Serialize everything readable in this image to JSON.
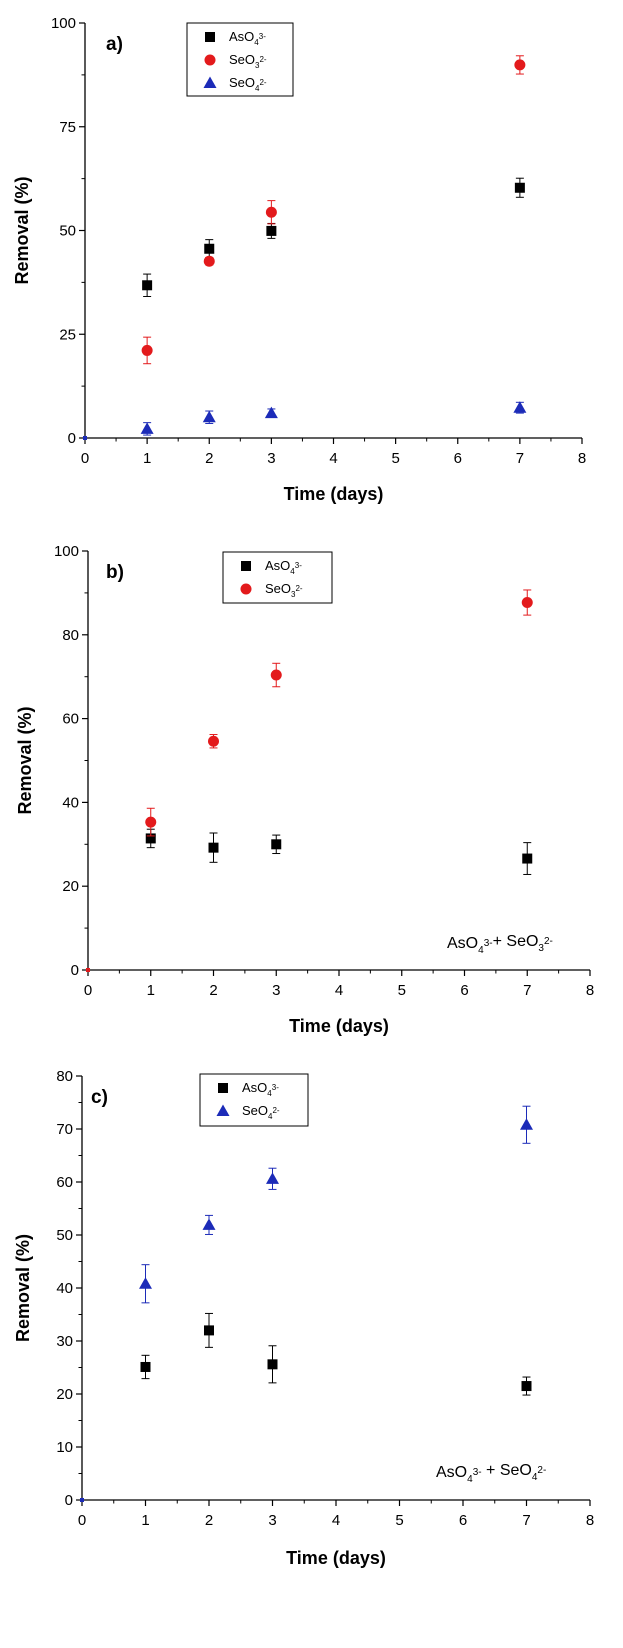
{
  "chart_data": [
    {
      "type": "scatter",
      "panel_label": "a)",
      "xlabel": "Time (days)",
      "ylabel": "Removal (%)",
      "xlim": [
        0,
        8
      ],
      "ylim": [
        0,
        100
      ],
      "xticks": [
        0,
        1,
        2,
        3,
        4,
        5,
        6,
        7,
        8
      ],
      "yticks": [
        0,
        25,
        50,
        75,
        100
      ],
      "legend_position": "top-center",
      "annotation": null,
      "series": [
        {
          "name": "AsO4 3-",
          "base": "AsO",
          "sub": "4",
          "sup": "3-",
          "color": "#000000",
          "marker": "square",
          "x": [
            0,
            1,
            2,
            3,
            7
          ],
          "y": [
            0,
            36.8,
            45.6,
            49.9,
            60.3
          ],
          "err": [
            0,
            2.7,
            2.2,
            1.8,
            2.3
          ]
        },
        {
          "name": "SeO3 2-",
          "base": "SeO",
          "sub": "3",
          "sup": "2-",
          "color": "#e31a1c",
          "marker": "circle",
          "x": [
            0,
            1,
            2,
            3,
            7
          ],
          "y": [
            0,
            21.1,
            42.6,
            54.4,
            89.9
          ],
          "err": [
            0,
            3.2,
            0.9,
            2.8,
            2.2
          ]
        },
        {
          "name": "SeO4 2-",
          "base": "SeO",
          "sub": "4",
          "sup": "2-",
          "color": "#1c2bb8",
          "marker": "triangle",
          "x": [
            0,
            1,
            2,
            3,
            7
          ],
          "y": [
            0,
            2.2,
            5.0,
            6.0,
            7.3
          ],
          "err": [
            0,
            1.5,
            1.5,
            1.0,
            1.3
          ]
        }
      ]
    },
    {
      "type": "scatter",
      "panel_label": "b)",
      "xlabel": "Time (days)",
      "ylabel": "Removal (%)",
      "xlim": [
        0,
        8
      ],
      "ylim": [
        0,
        100
      ],
      "xticks": [
        0,
        1,
        2,
        3,
        4,
        5,
        6,
        7,
        8
      ],
      "yticks": [
        0,
        20,
        40,
        60,
        80,
        100
      ],
      "legend_position": "top-center",
      "annotation": {
        "parts": [
          [
            "AsO",
            "4",
            "3-"
          ],
          [
            "SeO",
            "3",
            "2-"
          ]
        ],
        "joiner": "+ "
      },
      "series": [
        {
          "name": "AsO4 3-",
          "base": "AsO",
          "sub": "4",
          "sup": "3-",
          "color": "#000000",
          "marker": "square",
          "x": [
            1,
            2,
            3,
            7
          ],
          "y": [
            31.4,
            29.2,
            30.0,
            26.6
          ],
          "err": [
            2.2,
            3.5,
            2.2,
            3.8
          ]
        },
        {
          "name": "SeO3 2-",
          "base": "SeO",
          "sub": "3",
          "sup": "2-",
          "color": "#e31a1c",
          "marker": "circle",
          "x": [
            0,
            1,
            2,
            3,
            7
          ],
          "y": [
            0,
            35.3,
            54.6,
            70.4,
            87.7
          ],
          "err": [
            0,
            3.3,
            1.6,
            2.8,
            3.0
          ]
        }
      ]
    },
    {
      "type": "scatter",
      "panel_label": "c)",
      "xlabel": "Time (days)",
      "ylabel": "Removal (%)",
      "xlim": [
        0,
        8
      ],
      "ylim": [
        0,
        80
      ],
      "xticks": [
        0,
        1,
        2,
        3,
        4,
        5,
        6,
        7,
        8
      ],
      "yticks": [
        0,
        10,
        20,
        30,
        40,
        50,
        60,
        70,
        80
      ],
      "legend_position": "top-center",
      "annotation": {
        "parts": [
          [
            "AsO",
            "4",
            "3-"
          ],
          [
            "SeO",
            "4",
            "2-"
          ]
        ],
        "joiner": " + "
      },
      "series": [
        {
          "name": "AsO4 3-",
          "base": "AsO",
          "sub": "4",
          "sup": "3-",
          "color": "#000000",
          "marker": "square",
          "x": [
            1,
            2,
            3,
            7
          ],
          "y": [
            25.1,
            32.0,
            25.6,
            21.5
          ],
          "err": [
            2.2,
            3.2,
            3.5,
            1.7
          ]
        },
        {
          "name": "SeO4 2-",
          "base": "SeO",
          "sub": "4",
          "sup": "2-",
          "color": "#1c2bb8",
          "marker": "triangle",
          "x": [
            0,
            1,
            2,
            3,
            7
          ],
          "y": [
            0,
            40.8,
            51.9,
            60.6,
            70.8
          ],
          "err": [
            0,
            3.6,
            1.8,
            2.0,
            3.5
          ]
        }
      ]
    }
  ]
}
